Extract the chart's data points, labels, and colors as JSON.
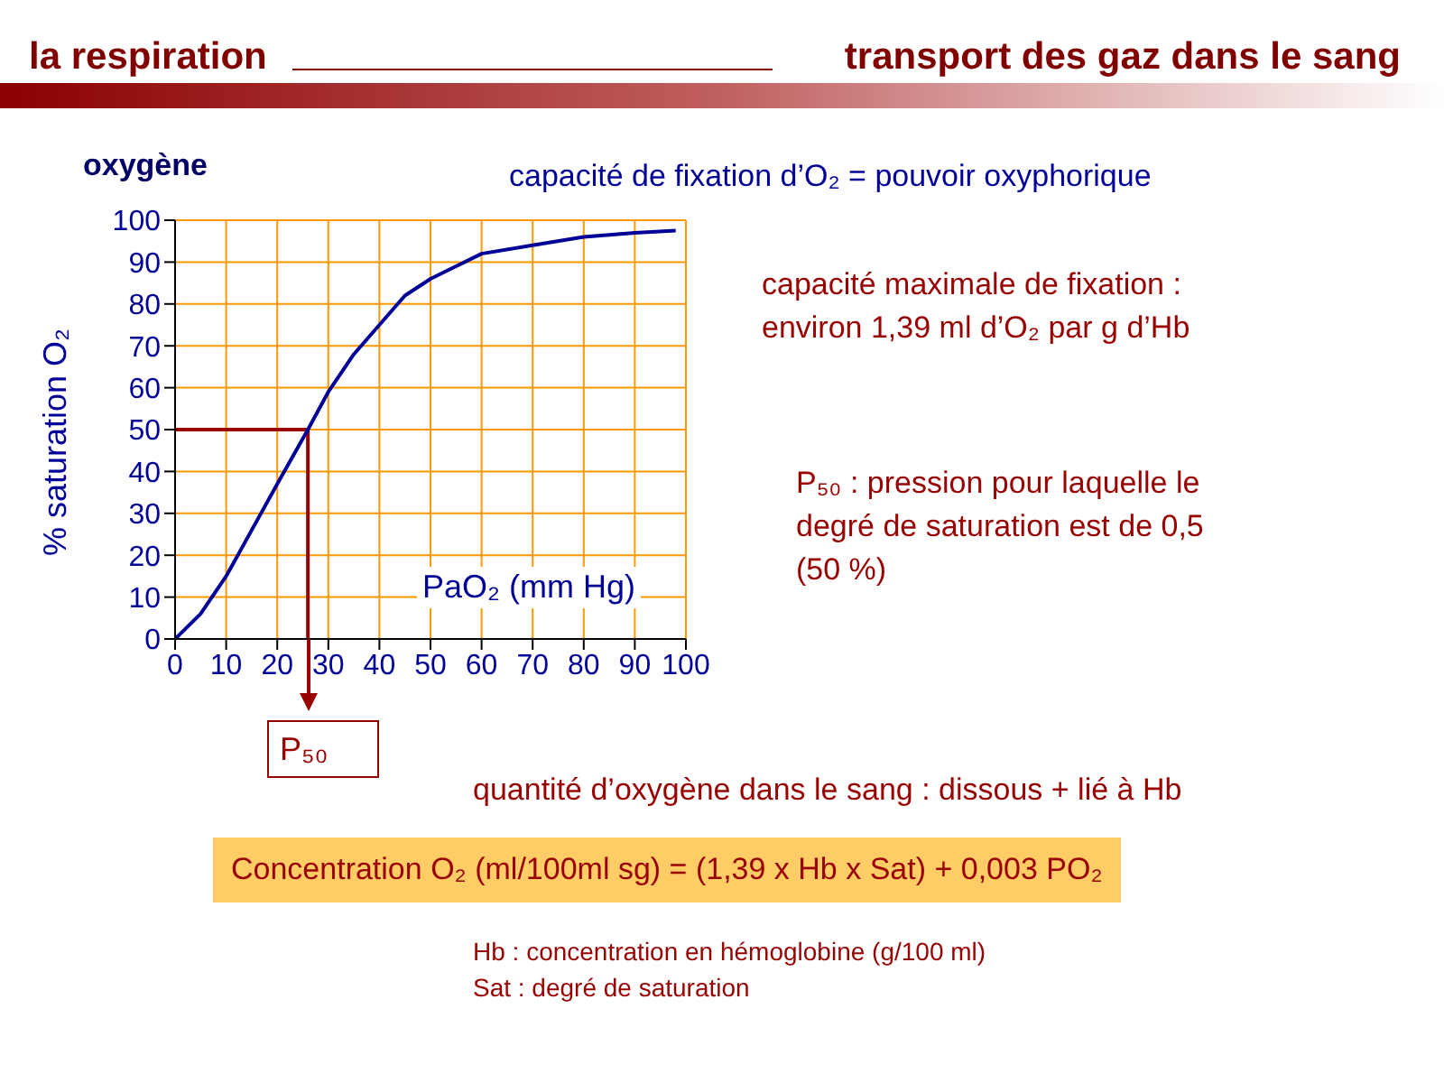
{
  "chart_data": {
    "type": "line",
    "title": "la respiration",
    "subtitle": "transport des gaz dans le sang",
    "xlabel": "PaO₂ (mm Hg)",
    "ylabel": "% saturation O₂",
    "x": [
      0,
      5,
      10,
      15,
      20,
      26,
      30,
      35,
      40,
      45,
      50,
      55,
      60,
      70,
      80,
      90,
      98
    ],
    "series": [
      {
        "color": "#000099",
        "values": [
          0,
          6,
          15,
          26,
          37,
          50,
          59,
          68,
          75,
          82,
          86,
          89,
          92,
          94,
          96,
          97,
          97.5
        ]
      }
    ],
    "xlim": [
      0,
      100
    ],
    "xticks": [
      0,
      10,
      20,
      30,
      40,
      50,
      60,
      70,
      80,
      90,
      100
    ],
    "ylim": [
      0,
      100
    ],
    "yticks": [
      0,
      10,
      20,
      30,
      40,
      50,
      60,
      70,
      80,
      90,
      100
    ],
    "grid": true,
    "marker": "none",
    "line_style": "solid",
    "ref_lines": [
      {
        "axis": "x",
        "value": 26,
        "label": "P₅₀",
        "color": "#990000"
      },
      {
        "axis": "y",
        "value": 50,
        "color": "#990000"
      }
    ],
    "annotations": [
      "oxygène",
      "capacité de fixation d’O₂ = pouvoir oxyphorique",
      "capacité maximale de fixation :\nenviron 1,39 ml d’O₂ par g d’Hb",
      "P₅₀ : pression pour laquelle le\ndegré de saturation est de 0,5\n(50 %)",
      "quantité d’oxygène dans le sang : dissous + lié à Hb",
      "Concentration O₂ (ml/100ml sg) = (1,39 x Hb x Sat) + 0,003 PO₂",
      "Hb : concentration en hémoglobine (g/100 ml)\nSat : degré de saturation"
    ]
  }
}
